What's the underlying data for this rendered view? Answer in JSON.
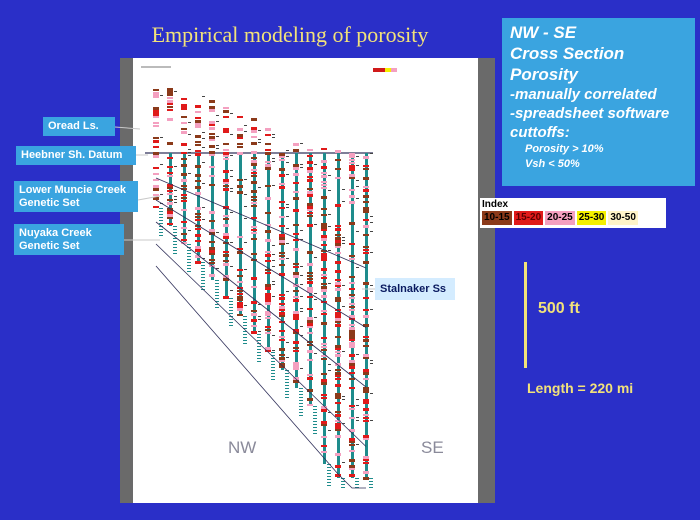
{
  "title": "Empirical modeling of porosity",
  "callouts": {
    "oread": "Oread Ls.",
    "heebner": "Heebner Sh. Datum",
    "muncie_line1": "Lower Muncie Creek",
    "muncie_line2": "Genetic Set",
    "nuyaka_line1": "Nuyaka Creek",
    "nuyaka_line2": "Genetic Set",
    "stalnaker": "Stalnaker Ss"
  },
  "direction": {
    "nw": "NW",
    "se": "SE"
  },
  "info_box": {
    "line1": "NW - SE",
    "line2": "Cross Section",
    "line3": "Porosity",
    "line4": "-manually correlated",
    "line5": "-spreadsheet software",
    "line6": "cuttoffs:",
    "sub1": "Porosity > 10%",
    "sub2": "Vsh < 50%"
  },
  "index_legend": {
    "title": "Index",
    "items": [
      {
        "label": "10-15",
        "color": "#8b3a1a",
        "text_color": "#000000"
      },
      {
        "label": "15-20",
        "color": "#e01a1a",
        "text_color": "#5a0000"
      },
      {
        "label": "20-25",
        "color": "#f4a0c0",
        "text_color": "#000000"
      },
      {
        "label": "25-30",
        "color": "#f4f000",
        "text_color": "#000000"
      },
      {
        "label": "30-50",
        "color": "#fff4c8",
        "text_color": "#000000"
      }
    ]
  },
  "scale": {
    "label": "500 ft"
  },
  "length": "Length = 220 mi",
  "colors": {
    "background": "#2a2fc8",
    "accent_yellow": "#f2e27a",
    "callout_blue": "#3aa4e0",
    "well_teal": "#1e8c8c",
    "datum_line": "#30305a"
  }
}
